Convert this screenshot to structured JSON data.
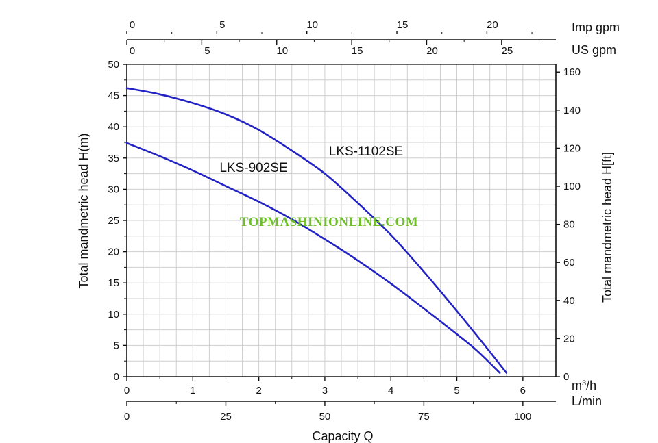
{
  "chart_data": {
    "type": "line",
    "x_axis_primary": {
      "label": "m³/h",
      "range": [
        0,
        6.5
      ],
      "ticks": [
        0,
        1,
        2,
        3,
        4,
        5,
        6
      ]
    },
    "x_axis_secondary": {
      "label": "L/min",
      "ticks": [
        0,
        25,
        50,
        75,
        100
      ]
    },
    "top_axis_us": {
      "label": "US gpm",
      "ticks": [
        0,
        5,
        10,
        15,
        20,
        25
      ]
    },
    "top_axis_imp": {
      "label": "Imp gpm",
      "ticks": [
        0,
        5,
        10,
        15,
        20
      ]
    },
    "xlabel": "Capacity Q",
    "y_axis_left": {
      "label": "Total mandmetric head H(m)",
      "range": [
        0,
        50
      ],
      "ticks": [
        0,
        5,
        10,
        15,
        20,
        25,
        30,
        35,
        40,
        45,
        50
      ]
    },
    "y_axis_right": {
      "label": "Total mandmetric head H[ft]",
      "range": [
        0,
        164
      ],
      "ticks": [
        0,
        20,
        40,
        60,
        80,
        100,
        120,
        140,
        160
      ]
    },
    "grid": true,
    "series": [
      {
        "name": "LKS-1102SE",
        "x": [
          0,
          0.5,
          1.0,
          1.5,
          2.0,
          2.5,
          3.0,
          3.5,
          4.0,
          4.5,
          5.0,
          5.4,
          5.75
        ],
        "y": [
          46.2,
          45.2,
          43.8,
          42.0,
          39.5,
          36.2,
          32.5,
          27.8,
          22.7,
          16.8,
          10.5,
          5.3,
          0.6
        ]
      },
      {
        "name": "LKS-902SE",
        "x": [
          0,
          0.5,
          1.0,
          1.5,
          2.0,
          2.5,
          3.0,
          3.5,
          4.0,
          4.5,
          5.0,
          5.3,
          5.65
        ],
        "y": [
          37.4,
          35.3,
          33.0,
          30.5,
          28.0,
          25.2,
          22.0,
          18.6,
          14.9,
          10.9,
          6.8,
          4.2,
          0.6
        ]
      }
    ],
    "series_color": "#2323c4",
    "watermark": {
      "text": "TOPMASHINIONLINE.COM",
      "color": "#6fbf2a"
    }
  }
}
